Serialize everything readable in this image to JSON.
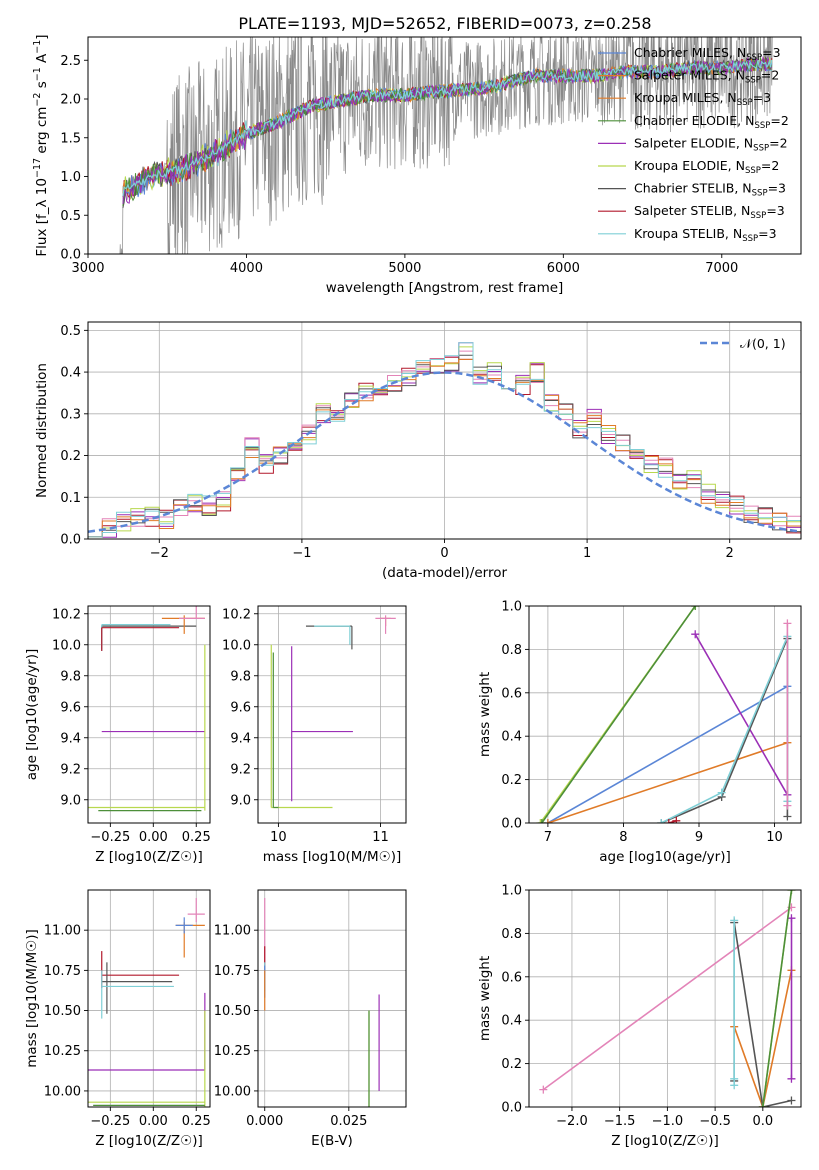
{
  "figure": {
    "title": "PLATE=1193, MJD=52652, FIBERID=0073, z=0.258"
  },
  "colors": {
    "grid": "#b0b0b0",
    "series": [
      "#5b86d6",
      "#e07b28",
      "#4d8f3a",
      "#9b2fb6",
      "#b8d84e",
      "#555555",
      "#b2182b",
      "#7fcfd6",
      "#e384b8"
    ],
    "normal": "#5b86d6"
  },
  "legends": {
    "spectrum": [
      {
        "pre": "Chabrier MILES, N",
        "sub": "SSP",
        "post": "=3",
        "color": "#5b86d6"
      },
      {
        "pre": "Salpeter MILES, N",
        "sub": "SSP",
        "post": "=2",
        "color": "#e07b28"
      },
      {
        "pre": "Kroupa MILES, N",
        "sub": "SSP",
        "post": "=3",
        "color": "#e07b28"
      },
      {
        "pre": "Chabrier ELODIE, N",
        "sub": "SSP",
        "post": "=2",
        "color": "#4d8f3a"
      },
      {
        "pre": "Salpeter ELODIE, N",
        "sub": "SSP",
        "post": "=2",
        "color": "#9b2fb6"
      },
      {
        "pre": "Kroupa ELODIE, N",
        "sub": "SSP",
        "post": "=2",
        "color": "#b8d84e"
      },
      {
        "pre": "Chabrier STELIB, N",
        "sub": "SSP",
        "post": "=3",
        "color": "#555555"
      },
      {
        "pre": "Salpeter STELIB, N",
        "sub": "SSP",
        "post": "=3",
        "color": "#b2182b"
      },
      {
        "pre": "Kroupa STELIB, N",
        "sub": "SSP",
        "post": "=3",
        "color": "#7fcfd6"
      }
    ],
    "residual": {
      "label": "𝒩(0, 1)"
    }
  },
  "chart_data": [
    {
      "id": "spectrum",
      "type": "line",
      "title": "PLATE=1193, MJD=52652, FIBERID=0073, z=0.258",
      "xlabel": "wavelength [Angstrom, rest frame]",
      "ylabel": "Flux [f_λ 10^-17 erg cm^-2 s^-1 A^-1]",
      "xlim": [
        3000,
        7500
      ],
      "ylim": [
        0,
        2.8
      ],
      "xticks": [
        3000,
        4000,
        5000,
        6000,
        7000
      ],
      "yticks": [
        0.0,
        0.5,
        1.0,
        1.5,
        2.0,
        2.5
      ],
      "grid": false,
      "legend": "right",
      "data_range": [
        3200,
        7320
      ],
      "model_continuum": {
        "x": [
          3220,
          3400,
          3600,
          3800,
          4000,
          4200,
          4400,
          4600,
          4800,
          5000,
          5200,
          5400,
          5600,
          5800,
          6000,
          6200,
          6400,
          6600,
          6800,
          7000,
          7200,
          7300
        ],
        "y": [
          0.8,
          1.0,
          1.1,
          1.3,
          1.55,
          1.7,
          1.9,
          1.98,
          2.05,
          2.05,
          2.1,
          2.12,
          2.18,
          2.3,
          2.3,
          2.3,
          2.35,
          2.35,
          2.4,
          2.4,
          2.45,
          2.45
        ]
      }
    },
    {
      "id": "residual",
      "type": "line",
      "xlabel": "(data-model)/error",
      "ylabel": "Normed distribution",
      "xlim": [
        -2.5,
        2.5
      ],
      "ylim": [
        0,
        0.52
      ],
      "xticks": [
        -2,
        -1,
        0,
        1,
        2
      ],
      "yticks": [
        0.0,
        0.1,
        0.2,
        0.3,
        0.4,
        0.5
      ],
      "grid": true,
      "legend": "top-right",
      "normal": {
        "mean": 0,
        "sigma": 1
      },
      "bin_width": 0.1,
      "histogram_centers": [
        -2.45,
        -2.35,
        -2.25,
        -2.15,
        -2.05,
        -1.95,
        -1.85,
        -1.75,
        -1.65,
        -1.55,
        -1.45,
        -1.35,
        -1.25,
        -1.15,
        -1.05,
        -0.95,
        -0.85,
        -0.75,
        -0.65,
        -0.55,
        -0.45,
        -0.35,
        -0.25,
        -0.15,
        -0.05,
        0.05,
        0.15,
        0.25,
        0.35,
        0.45,
        0.55,
        0.65,
        0.75,
        0.85,
        0.95,
        1.05,
        1.15,
        1.25,
        1.35,
        1.45,
        1.55,
        1.65,
        1.75,
        1.85,
        1.95,
        2.05,
        2.15,
        2.25,
        2.35,
        2.45
      ],
      "histogram_base": [
        0.03,
        0.025,
        0.04,
        0.05,
        0.055,
        0.05,
        0.07,
        0.085,
        0.08,
        0.09,
        0.15,
        0.22,
        0.18,
        0.2,
        0.22,
        0.25,
        0.3,
        0.29,
        0.33,
        0.35,
        0.36,
        0.37,
        0.39,
        0.41,
        0.41,
        0.42,
        0.45,
        0.39,
        0.4,
        0.38,
        0.37,
        0.4,
        0.33,
        0.3,
        0.26,
        0.29,
        0.25,
        0.23,
        0.2,
        0.18,
        0.17,
        0.14,
        0.14,
        0.11,
        0.1,
        0.08,
        0.06,
        0.05,
        0.04,
        0.03
      ]
    },
    {
      "id": "age-vs-Z",
      "type": "scatter",
      "xlabel": "Z [log10(Z/Z☉)]",
      "ylabel": "age [log10(age/yr)]",
      "xlim": [
        -0.38,
        0.33
      ],
      "ylim": [
        8.85,
        10.25
      ],
      "xticks": [
        -0.25,
        0.0,
        0.25
      ],
      "yticks": [
        9.0,
        9.2,
        9.4,
        9.6,
        9.8,
        10.0,
        10.2
      ],
      "grid": true,
      "points": [
        {
          "x": -0.3,
          "y": 10.12,
          "xerr": [
            0.0,
            0.55
          ],
          "yerr": [
            0.15,
            0.0
          ],
          "c": 5
        },
        {
          "x": -0.3,
          "y": 10.13,
          "xerr": [
            0.0,
            0.4
          ],
          "yerr": [
            0.17,
            0.0
          ],
          "c": 7
        },
        {
          "x": -0.3,
          "y": 10.11,
          "xerr": [
            0.0,
            0.45
          ],
          "yerr": [
            0.15,
            0.0
          ],
          "c": 6
        },
        {
          "x": 0.18,
          "y": 10.17,
          "xerr": [
            0.13,
            0.12
          ],
          "yerr": [
            0.1,
            0.02
          ],
          "c": 1
        },
        {
          "x": 0.25,
          "y": 10.17,
          "xerr": [
            0.1,
            0.05
          ],
          "yerr": [
            0.0,
            0.1
          ],
          "c": 8
        },
        {
          "x": 0.3,
          "y": 9.44,
          "xerr": [
            0.6,
            0.0
          ],
          "yerr": [
            0.0,
            0.0
          ],
          "c": 3
        },
        {
          "x": 0.3,
          "y": 8.95,
          "xerr": [
            0.68,
            0.0
          ],
          "yerr": [
            0.02,
            1.05
          ],
          "c": 4
        },
        {
          "x": 0.28,
          "y": 8.93,
          "xerr": [
            0.6,
            0.0
          ],
          "yerr": [
            0.0,
            0.0
          ],
          "c": 2
        }
      ]
    },
    {
      "id": "age-vs-mass",
      "type": "scatter",
      "xlabel": "mass [log10(M/M☉)]",
      "ylabel": "",
      "xlim": [
        9.8,
        11.25
      ],
      "ylim": [
        8.85,
        10.25
      ],
      "xticks": [
        10,
        11
      ],
      "yticks": [
        9.0,
        9.2,
        9.4,
        9.6,
        9.8,
        10.0,
        10.2
      ],
      "grid": true,
      "points": [
        {
          "x": 10.72,
          "y": 10.12,
          "xerr": [
            0.45,
            0.0
          ],
          "yerr": [
            0.15,
            0.0
          ],
          "c": 5
        },
        {
          "x": 10.7,
          "y": 10.12,
          "xerr": [
            0.35,
            0.0
          ],
          "yerr": [
            0.12,
            0.0
          ],
          "c": 7
        },
        {
          "x": 11.05,
          "y": 10.17,
          "xerr": [
            0.05,
            0.05
          ],
          "yerr": [
            0.05,
            0.0
          ],
          "c": 1
        },
        {
          "x": 11.05,
          "y": 10.17,
          "xerr": [
            0.1,
            0.1
          ],
          "yerr": [
            0.1,
            0.02
          ],
          "c": 8
        },
        {
          "x": 10.13,
          "y": 9.44,
          "xerr": [
            0.0,
            0.6
          ],
          "yerr": [
            0.45,
            0.55
          ],
          "c": 3
        },
        {
          "x": 9.93,
          "y": 8.95,
          "xerr": [
            0.0,
            0.6
          ],
          "yerr": [
            0.0,
            1.05
          ],
          "c": 4
        },
        {
          "x": 9.95,
          "y": 8.95,
          "xerr": [
            0.0,
            0.05
          ],
          "yerr": [
            0.0,
            1.0
          ],
          "c": 2
        }
      ]
    },
    {
      "id": "weight-vs-age",
      "type": "line",
      "xlabel": "age [log10(age/yr)]",
      "ylabel": "mass weight",
      "xlim": [
        6.75,
        10.35
      ],
      "ylim": [
        0.0,
        1.0
      ],
      "xticks": [
        7,
        8,
        9,
        10
      ],
      "yticks": [
        0.0,
        0.2,
        0.4,
        0.6,
        0.8,
        1.0
      ],
      "grid": true,
      "series": [
        {
          "c": 0,
          "x": [
            7.0,
            10.17
          ],
          "y": [
            0.0,
            0.63
          ]
        },
        {
          "c": 1,
          "x": [
            7.0,
            10.17
          ],
          "y": [
            0.0,
            0.37
          ]
        },
        {
          "c": 4,
          "x": [
            6.9,
            8.95
          ],
          "y": [
            0.0,
            1.0
          ]
        },
        {
          "c": 2,
          "x": [
            6.92,
            8.95
          ],
          "y": [
            0.0,
            1.0
          ]
        },
        {
          "c": 3,
          "x": [
            8.95,
            10.17
          ],
          "y": [
            0.87,
            0.13
          ]
        },
        {
          "c": 5,
          "x": [
            8.5,
            9.3,
            10.17,
            10.17
          ],
          "y": [
            0.0,
            0.12,
            0.85,
            0.03
          ]
        },
        {
          "c": 7,
          "x": [
            8.5,
            9.3,
            10.17,
            10.17
          ],
          "y": [
            0.0,
            0.14,
            0.86,
            0.1
          ]
        },
        {
          "c": 6,
          "x": [
            8.6,
            8.7
          ],
          "y": [
            0.0,
            0.01
          ]
        },
        {
          "c": 8,
          "x": [
            10.17,
            10.17
          ],
          "y": [
            0.92,
            0.08
          ]
        }
      ]
    },
    {
      "id": "mass-vs-Z",
      "type": "scatter",
      "xlabel": "Z [log10(Z/Z☉)]",
      "ylabel": "mass [log10(M/M☉)]",
      "xlim": [
        -0.38,
        0.33
      ],
      "ylim": [
        9.9,
        11.25
      ],
      "xticks": [
        -0.25,
        0.0,
        0.25
      ],
      "yticks": [
        10.0,
        10.25,
        10.5,
        10.75,
        11.0
      ],
      "grid": true,
      "points": [
        {
          "x": -0.3,
          "y": 10.72,
          "xerr": [
            0.0,
            0.45
          ],
          "yerr": [
            0.08,
            0.15
          ],
          "c": 6
        },
        {
          "x": -0.27,
          "y": 10.68,
          "xerr": [
            0.03,
            0.38
          ],
          "yerr": [
            0.2,
            0.12
          ],
          "c": 5
        },
        {
          "x": -0.3,
          "y": 10.65,
          "xerr": [
            0.0,
            0.42
          ],
          "yerr": [
            0.2,
            0.1
          ],
          "c": 7
        },
        {
          "x": 0.18,
          "y": 11.03,
          "xerr": [
            0.05,
            0.12
          ],
          "yerr": [
            0.2,
            0.02
          ],
          "c": 1
        },
        {
          "x": 0.18,
          "y": 11.03,
          "xerr": [
            0.05,
            0.05
          ],
          "yerr": [
            0.05,
            0.05
          ],
          "c": 0
        },
        {
          "x": 0.25,
          "y": 11.1,
          "xerr": [
            0.05,
            0.05
          ],
          "yerr": [
            0.05,
            0.1
          ],
          "c": 8
        },
        {
          "x": 0.3,
          "y": 10.13,
          "xerr": [
            0.68,
            0.0
          ],
          "yerr": [
            0.0,
            0.48
          ],
          "c": 3
        },
        {
          "x": 0.3,
          "y": 9.93,
          "xerr": [
            0.68,
            0.0
          ],
          "yerr": [
            0.05,
            0.57
          ],
          "c": 4
        },
        {
          "x": 0.3,
          "y": 9.91,
          "xerr": [
            0.65,
            0.0
          ],
          "yerr": [
            0.0,
            0.0
          ],
          "c": 2
        }
      ]
    },
    {
      "id": "mass-vs-EBV",
      "type": "scatter",
      "xlabel": "E(B-V)",
      "ylabel": "",
      "xlim": [
        -0.002,
        0.042
      ],
      "ylim": [
        9.9,
        11.25
      ],
      "xticks": [
        0.0,
        0.025
      ],
      "yticks": [
        10.0,
        10.25,
        10.5,
        10.75,
        11.0
      ],
      "grid": true,
      "points": [
        {
          "x": 0.0,
          "y": 11.0,
          "xerr": [
            0,
            0
          ],
          "yerr": [
            0.3,
            0.2
          ],
          "c": 8
        },
        {
          "x": 0.0,
          "y": 10.8,
          "xerr": [
            0,
            0
          ],
          "yerr": [
            0.05,
            0.1
          ],
          "c": 6
        },
        {
          "x": 0.0,
          "y": 10.72,
          "xerr": [
            0,
            0
          ],
          "yerr": [
            0.1,
            0.08
          ],
          "c": 7
        },
        {
          "x": 0.0,
          "y": 10.68,
          "xerr": [
            0,
            0
          ],
          "yerr": [
            0.1,
            0.1
          ],
          "c": 0
        },
        {
          "x": 0.0,
          "y": 10.65,
          "xerr": [
            0,
            0
          ],
          "yerr": [
            0.15,
            0.1
          ],
          "c": 1
        },
        {
          "x": 0.031,
          "y": 10.2,
          "xerr": [
            0,
            0
          ],
          "yerr": [
            0.35,
            0.3
          ],
          "c": 4
        },
        {
          "x": 0.031,
          "y": 10.2,
          "xerr": [
            0,
            0
          ],
          "yerr": [
            0.3,
            0.3
          ],
          "c": 2
        },
        {
          "x": 0.034,
          "y": 10.3,
          "xerr": [
            0,
            0
          ],
          "yerr": [
            0.3,
            0.3
          ],
          "c": 3
        }
      ]
    },
    {
      "id": "weight-vs-Z",
      "type": "line",
      "xlabel": "Z [log10(Z/Z☉)]",
      "ylabel": "mass weight",
      "xlim": [
        -2.45,
        0.4
      ],
      "ylim": [
        0.0,
        1.0
      ],
      "xticks": [
        -2.0,
        -1.5,
        -1.0,
        -0.5,
        0.0
      ],
      "yticks": [
        0.0,
        0.2,
        0.4,
        0.6,
        0.8,
        1.0
      ],
      "grid": true,
      "series": [
        {
          "c": 8,
          "x": [
            -2.3,
            0.3
          ],
          "y": [
            0.08,
            0.92
          ]
        },
        {
          "c": 1,
          "x": [
            -0.3,
            0.0,
            0.3
          ],
          "y": [
            0.37,
            0.0,
            0.63
          ]
        },
        {
          "c": 5,
          "x": [
            -0.3,
            -0.3,
            0.0,
            0.3
          ],
          "y": [
            0.12,
            0.85,
            0.0,
            0.03
          ]
        },
        {
          "c": 7,
          "x": [
            -0.3,
            -0.3,
            -0.3
          ],
          "y": [
            0.13,
            0.86,
            0.1
          ]
        },
        {
          "c": 3,
          "x": [
            0.3,
            0.3
          ],
          "y": [
            0.87,
            0.13
          ]
        },
        {
          "c": 4,
          "x": [
            0.0,
            0.3
          ],
          "y": [
            0.0,
            1.0
          ]
        },
        {
          "c": 2,
          "x": [
            0.0,
            0.3
          ],
          "y": [
            0.0,
            1.0
          ]
        }
      ]
    }
  ]
}
